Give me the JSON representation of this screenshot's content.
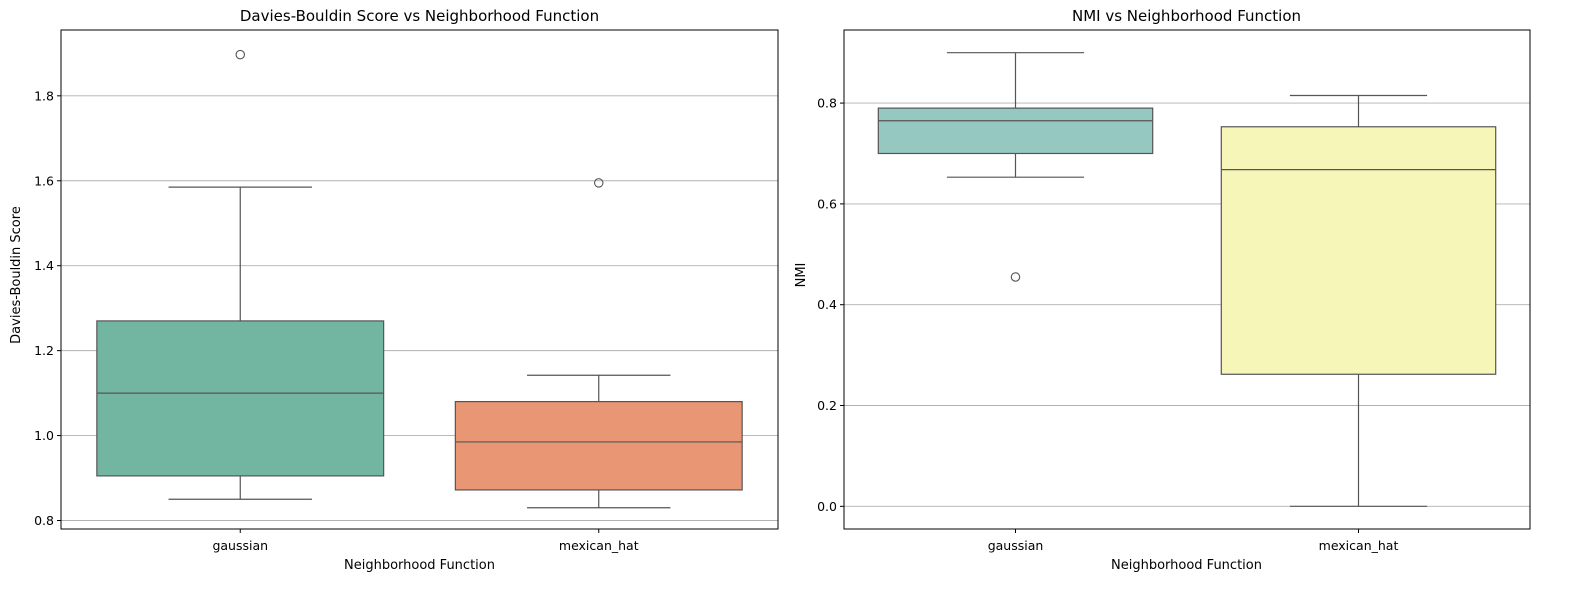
{
  "chart_data": [
    {
      "type": "box",
      "title": "Davies-Bouldin Score vs Neighborhood Function",
      "xlabel": "Neighborhood Function",
      "ylabel": "Davies-Bouldin Score",
      "ylim": [
        0.78,
        1.955
      ],
      "yticks": [
        "0.8",
        "1.0",
        "1.2",
        "1.4",
        "1.6",
        "1.8"
      ],
      "grid": "y",
      "categories": [
        "gaussian",
        "mexican_hat"
      ],
      "boxes": [
        {
          "category": "gaussian",
          "whisker_low": 0.85,
          "q1": 0.905,
          "median": 1.1,
          "q3": 1.27,
          "whisker_high": 1.585,
          "outliers": [
            1.897
          ],
          "color": "#72b6a1"
        },
        {
          "category": "mexican_hat",
          "whisker_low": 0.83,
          "q1": 0.872,
          "median": 0.985,
          "q3": 1.08,
          "whisker_high": 1.142,
          "outliers": [
            1.595
          ],
          "color": "#e99675"
        }
      ]
    },
    {
      "type": "box",
      "title": "NMI vs Neighborhood Function",
      "xlabel": "Neighborhood Function",
      "ylabel": "NMI",
      "ylim": [
        -0.045,
        0.945
      ],
      "yticks": [
        "0.0",
        "0.2",
        "0.4",
        "0.6",
        "0.8"
      ],
      "grid": "y",
      "categories": [
        "gaussian",
        "mexican_hat"
      ],
      "boxes": [
        {
          "category": "gaussian",
          "whisker_low": 0.653,
          "q1": 0.7,
          "median": 0.765,
          "q3": 0.79,
          "whisker_high": 0.9,
          "outliers": [
            0.455
          ],
          "color": "#95c8c0"
        },
        {
          "category": "mexican_hat",
          "whisker_low": 0.0,
          "q1": 0.262,
          "median": 0.668,
          "q3": 0.753,
          "whisker_high": 0.815,
          "outliers": [],
          "color": "#f6f6b9"
        }
      ]
    }
  ]
}
